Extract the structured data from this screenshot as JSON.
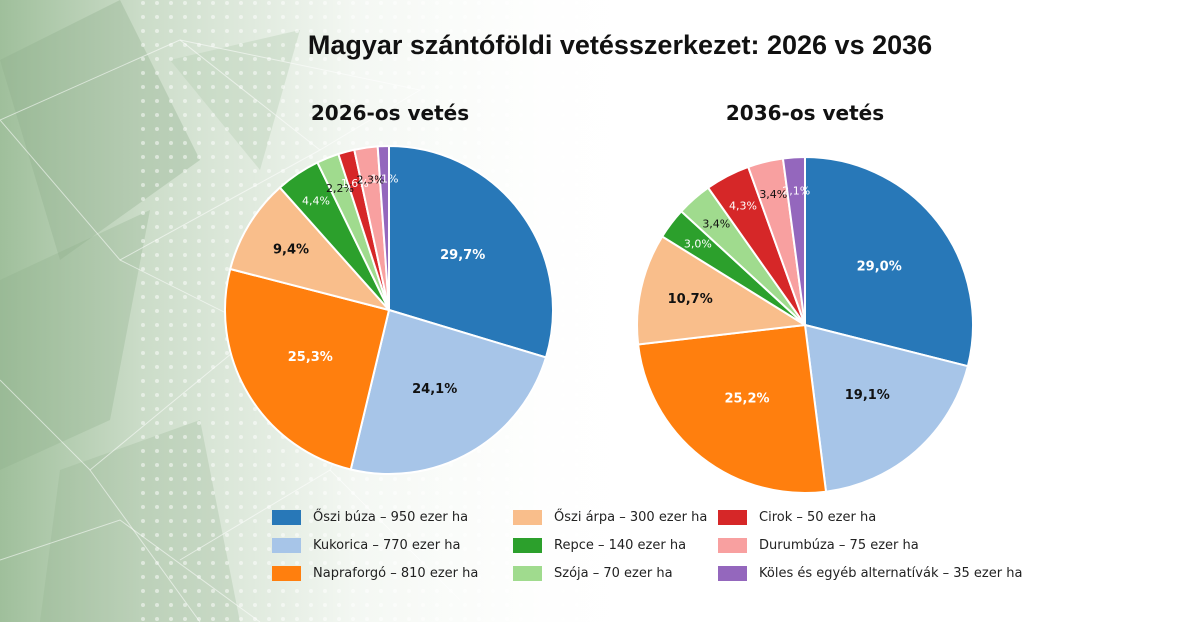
{
  "title": "Magyar szántóföldi vetésszerkezet: 2026 vs 2036",
  "legend": [
    {
      "label": "Őszi búza – 950 ezer ha",
      "color": "#2878b8"
    },
    {
      "label": "Kukorica – 770 ezer ha",
      "color": "#a7c5e8"
    },
    {
      "label": "Napraforgó – 810 ezer ha",
      "color": "#ff7f0e"
    },
    {
      "label": "Őszi árpa – 300 ezer ha",
      "color": "#f9be8b"
    },
    {
      "label": "Repce – 140 ezer ha",
      "color": "#2ca02c"
    },
    {
      "label": "Szója – 70 ezer ha",
      "color": "#a0db8e"
    },
    {
      "label": "Cirok – 50 ezer ha",
      "color": "#d62728"
    },
    {
      "label": "Durumbúza – 75 ezer ha",
      "color": "#f8a0a0"
    },
    {
      "label": "Köles és egyéb alternatívák – 35 ezer ha",
      "color": "#9467bd"
    }
  ],
  "chart_data": [
    {
      "type": "pie",
      "title": "2026-os vetés",
      "categories": [
        "Őszi búza",
        "Kukorica",
        "Napraforgó",
        "Őszi árpa",
        "Repce",
        "Szója",
        "Cirok",
        "Durumbúza",
        "Köles és egyéb alternatívák"
      ],
      "values": [
        29.7,
        24.1,
        25.3,
        9.4,
        4.4,
        2.2,
        1.6,
        2.3,
        1.1
      ],
      "labels": [
        "29,7%",
        "24,1%",
        "25,3%",
        "9,4%",
        "4,4%",
        "2,2%",
        "1,6%",
        "2,3%",
        "1,1%"
      ],
      "colors": [
        "#2878b8",
        "#a7c5e8",
        "#ff7f0e",
        "#f9be8b",
        "#2ca02c",
        "#a0db8e",
        "#d62728",
        "#f8a0a0",
        "#9467bd"
      ],
      "label_colors": [
        "#ffffff",
        "#111111",
        "#ffffff",
        "#111111",
        "#ffffff",
        "#111111",
        "#ffffff",
        "#111111",
        "#ffffff"
      ]
    },
    {
      "type": "pie",
      "title": "2036-os vetés",
      "categories": [
        "Őszi búza",
        "Kukorica",
        "Napraforgó",
        "Őszi árpa",
        "Repce",
        "Szója",
        "Cirok",
        "Durumbúza",
        "Köles és egyéb alternatívák"
      ],
      "values": [
        29.0,
        19.1,
        25.2,
        10.7,
        3.0,
        3.4,
        4.3,
        3.4,
        2.1
      ],
      "labels": [
        "29,0%",
        "19,1%",
        "25,2%",
        "10,7%",
        "3,0%",
        "3,4%",
        "4,3%",
        "3,4%",
        "2,1%"
      ],
      "colors": [
        "#2878b8",
        "#a7c5e8",
        "#ff7f0e",
        "#f9be8b",
        "#2ca02c",
        "#a0db8e",
        "#d62728",
        "#f8a0a0",
        "#9467bd"
      ],
      "label_colors": [
        "#ffffff",
        "#111111",
        "#ffffff",
        "#111111",
        "#ffffff",
        "#111111",
        "#ffffff",
        "#111111",
        "#ffffff"
      ]
    }
  ]
}
